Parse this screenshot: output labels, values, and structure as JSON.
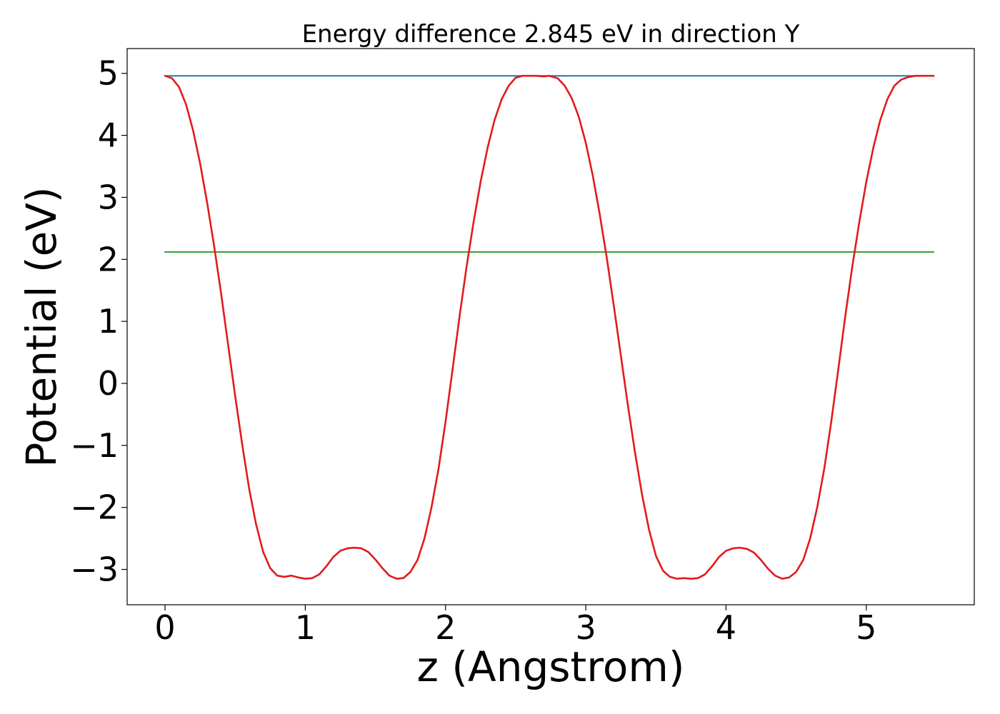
{
  "chart_data": {
    "type": "line",
    "title": "Energy difference 2.845 eV in direction Y",
    "xlabel": "z (Angstrom)",
    "ylabel": "Potential (eV)",
    "xlim": [
      -0.27,
      5.77
    ],
    "ylim": [
      -3.57,
      5.4
    ],
    "xticks": [
      0,
      1,
      2,
      3,
      4,
      5
    ],
    "xtick_labels": [
      "0",
      "1",
      "2",
      "3",
      "4",
      "5"
    ],
    "yticks": [
      -3,
      -2,
      -1,
      0,
      1,
      2,
      3,
      4,
      5
    ],
    "ytick_labels": [
      "−3",
      "−2",
      "−1",
      "0",
      "1",
      "2",
      "3",
      "4",
      "5"
    ],
    "grid": false,
    "series": [
      {
        "color": "#1f77b4",
        "x": [
          0,
          5.48
        ],
        "y": [
          4.96,
          4.96
        ]
      },
      {
        "color": "#2ca02c",
        "x": [
          0,
          5.48
        ],
        "y": [
          2.12,
          2.12
        ]
      },
      {
        "color": "#e31a1c",
        "x": [
          0,
          0.05,
          0.1,
          0.15,
          0.2,
          0.25,
          0.3,
          0.35,
          0.4,
          0.45,
          0.5,
          0.55,
          0.6,
          0.65,
          0.7,
          0.75,
          0.8,
          0.85,
          0.9,
          0.95,
          1.0,
          1.05,
          1.1,
          1.15,
          1.2,
          1.25,
          1.3,
          1.35,
          1.4,
          1.45,
          1.5,
          1.55,
          1.6,
          1.65,
          1.7,
          1.75,
          1.8,
          1.85,
          1.9,
          1.95,
          2.0,
          2.05,
          2.1,
          2.15,
          2.2,
          2.25,
          2.3,
          2.35,
          2.4,
          2.45,
          2.5,
          2.55,
          2.6,
          2.65,
          2.7,
          2.74,
          2.8,
          2.85,
          2.9,
          2.95,
          3.0,
          3.05,
          3.1,
          3.15,
          3.2,
          3.25,
          3.3,
          3.35,
          3.4,
          3.45,
          3.5,
          3.55,
          3.6,
          3.65,
          3.7,
          3.75,
          3.8,
          3.85,
          3.9,
          3.95,
          4.0,
          4.05,
          4.1,
          4.15,
          4.2,
          4.25,
          4.3,
          4.35,
          4.4,
          4.45,
          4.5,
          4.55,
          4.6,
          4.65,
          4.7,
          4.75,
          4.8,
          4.85,
          4.9,
          4.95,
          5.0,
          5.05,
          5.1,
          5.15,
          5.2,
          5.25,
          5.3,
          5.35,
          5.4,
          5.45,
          5.48
        ],
        "y": [
          4.96,
          4.92,
          4.78,
          4.5,
          4.08,
          3.55,
          2.92,
          2.22,
          1.45,
          0.62,
          -0.2,
          -0.98,
          -1.7,
          -2.28,
          -2.72,
          -2.98,
          -3.1,
          -3.12,
          -3.1,
          -3.13,
          -3.15,
          -3.14,
          -3.08,
          -2.95,
          -2.8,
          -2.7,
          -2.66,
          -2.65,
          -2.66,
          -2.72,
          -2.84,
          -2.98,
          -3.1,
          -3.15,
          -3.14,
          -3.04,
          -2.85,
          -2.5,
          -2.0,
          -1.38,
          -0.62,
          0.22,
          1.08,
          1.88,
          2.6,
          3.25,
          3.8,
          4.25,
          4.58,
          4.8,
          4.93,
          4.96,
          4.96,
          4.96,
          4.95,
          4.96,
          4.92,
          4.8,
          4.6,
          4.3,
          3.88,
          3.35,
          2.72,
          2.02,
          1.25,
          0.45,
          -0.35,
          -1.1,
          -1.78,
          -2.35,
          -2.78,
          -3.02,
          -3.12,
          -3.15,
          -3.14,
          -3.15,
          -3.14,
          -3.08,
          -2.95,
          -2.8,
          -2.7,
          -2.66,
          -2.65,
          -2.67,
          -2.73,
          -2.85,
          -2.99,
          -3.1,
          -3.15,
          -3.13,
          -3.04,
          -2.85,
          -2.5,
          -2.0,
          -1.38,
          -0.62,
          0.22,
          1.08,
          1.88,
          2.6,
          3.25,
          3.8,
          4.25,
          4.58,
          4.8,
          4.9,
          4.94,
          4.96,
          4.96,
          4.96,
          4.96
        ]
      }
    ]
  }
}
